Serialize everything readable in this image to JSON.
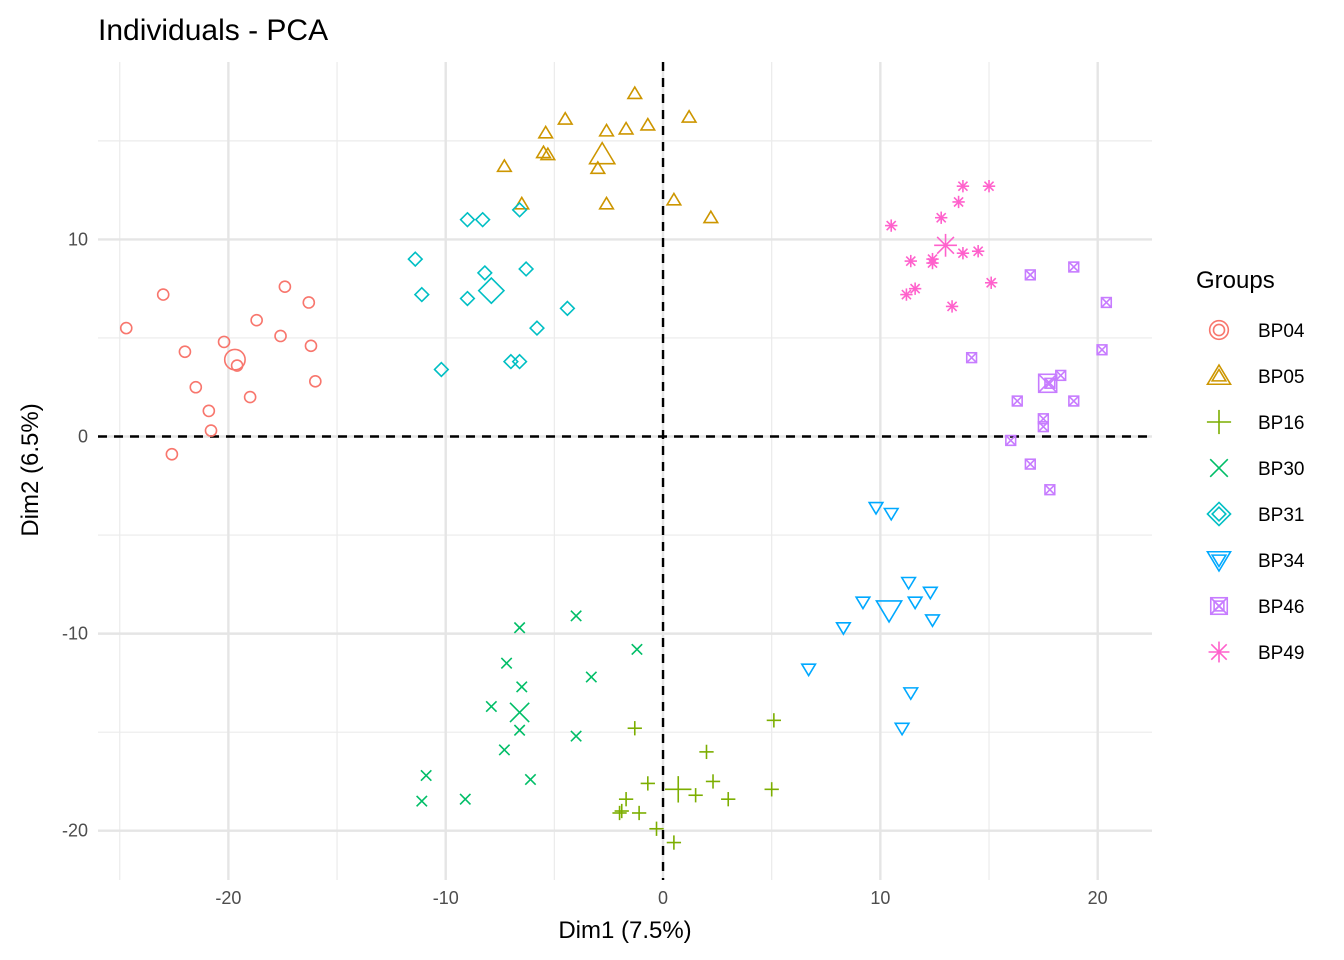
{
  "chart_data": {
    "type": "scatter",
    "title": "Individuals - PCA",
    "xlabel": "Dim1 (7.5%)",
    "ylabel": "Dim2 (6.5%)",
    "xlim": [
      -26,
      22.5
    ],
    "ylim": [
      -22.5,
      19
    ],
    "x_ticks": [
      -20,
      -10,
      0,
      10,
      20
    ],
    "y_ticks": [
      -20,
      -10,
      0,
      10
    ],
    "x_tick_labels": [
      "-20",
      "-10",
      "0",
      "10",
      "20"
    ],
    "y_tick_labels": [
      "-20",
      "-10",
      "0",
      "10"
    ],
    "grid": true,
    "reference_lines": {
      "x": 0,
      "y": 0,
      "style": "dashed"
    },
    "legend": {
      "title": "Groups",
      "position": "right"
    },
    "series": [
      {
        "name": "BP04",
        "color": "#F8766D",
        "shape": "circle",
        "centroid": [
          -19.7,
          3.9
        ],
        "points": [
          [
            -24.7,
            5.5
          ],
          [
            -23.0,
            7.2
          ],
          [
            -22.0,
            4.3
          ],
          [
            -20.2,
            4.8
          ],
          [
            -18.7,
            5.9
          ],
          [
            -17.6,
            5.1
          ],
          [
            -17.4,
            7.6
          ],
          [
            -16.3,
            6.8
          ],
          [
            -16.2,
            4.6
          ],
          [
            -16.0,
            2.8
          ],
          [
            -21.5,
            2.5
          ],
          [
            -19.6,
            3.6
          ],
          [
            -19.0,
            2.0
          ],
          [
            -20.9,
            1.3
          ],
          [
            -20.8,
            0.3
          ],
          [
            -22.6,
            -0.9
          ]
        ]
      },
      {
        "name": "BP05",
        "color": "#CD9600",
        "shape": "triangle",
        "centroid": [
          -2.8,
          14.3
        ],
        "points": [
          [
            -1.3,
            17.4
          ],
          [
            -4.5,
            16.1
          ],
          [
            -1.7,
            15.6
          ],
          [
            -0.7,
            15.8
          ],
          [
            1.2,
            16.2
          ],
          [
            -2.6,
            15.5
          ],
          [
            -5.4,
            15.4
          ],
          [
            -5.5,
            14.4
          ],
          [
            -5.3,
            14.3
          ],
          [
            -3.0,
            13.6
          ],
          [
            -7.3,
            13.7
          ],
          [
            -6.5,
            11.8
          ],
          [
            -2.6,
            11.8
          ],
          [
            0.5,
            12.0
          ],
          [
            2.2,
            11.1
          ]
        ]
      },
      {
        "name": "BP16",
        "color": "#7CAE00",
        "shape": "plus",
        "centroid": [
          0.7,
          -17.9
        ],
        "points": [
          [
            -1.3,
            -14.8
          ],
          [
            5.1,
            -14.4
          ],
          [
            2.0,
            -16.0
          ],
          [
            -0.7,
            -17.6
          ],
          [
            2.3,
            -17.5
          ],
          [
            1.5,
            -18.2
          ],
          [
            3.0,
            -18.4
          ],
          [
            5.0,
            -17.9
          ],
          [
            -1.7,
            -18.4
          ],
          [
            -1.9,
            -19.0
          ],
          [
            -2.0,
            -19.1
          ],
          [
            -1.1,
            -19.1
          ],
          [
            -0.3,
            -19.9
          ],
          [
            0.5,
            -20.6
          ]
        ]
      },
      {
        "name": "BP30",
        "color": "#00BE67",
        "shape": "cross",
        "centroid": [
          -6.6,
          -14.0
        ],
        "points": [
          [
            -4.0,
            -9.1
          ],
          [
            -6.6,
            -9.7
          ],
          [
            -1.2,
            -10.8
          ],
          [
            -7.2,
            -11.5
          ],
          [
            -3.3,
            -12.2
          ],
          [
            -6.5,
            -12.7
          ],
          [
            -7.9,
            -13.7
          ],
          [
            -6.6,
            -14.9
          ],
          [
            -4.0,
            -15.2
          ],
          [
            -7.3,
            -15.9
          ],
          [
            -10.9,
            -17.2
          ],
          [
            -6.1,
            -17.4
          ],
          [
            -11.1,
            -18.5
          ],
          [
            -9.1,
            -18.4
          ]
        ]
      },
      {
        "name": "BP31",
        "color": "#00BFC4",
        "shape": "diamond",
        "centroid": [
          -7.9,
          7.4
        ],
        "points": [
          [
            -9.0,
            11.0
          ],
          [
            -8.3,
            11.0
          ],
          [
            -6.6,
            11.5
          ],
          [
            -11.4,
            9.0
          ],
          [
            -8.2,
            8.3
          ],
          [
            -6.3,
            8.5
          ],
          [
            -11.1,
            7.2
          ],
          [
            -9.0,
            7.0
          ],
          [
            -4.4,
            6.5
          ],
          [
            -5.8,
            5.5
          ],
          [
            -7.0,
            3.8
          ],
          [
            -6.6,
            3.8
          ],
          [
            -10.2,
            3.4
          ]
        ]
      },
      {
        "name": "BP34",
        "color": "#00A9FF",
        "shape": "triangle-down",
        "centroid": [
          10.4,
          -8.8
        ],
        "points": [
          [
            9.8,
            -3.6
          ],
          [
            10.5,
            -3.9
          ],
          [
            11.3,
            -7.4
          ],
          [
            12.3,
            -7.9
          ],
          [
            9.2,
            -8.4
          ],
          [
            11.6,
            -8.4
          ],
          [
            12.4,
            -9.3
          ],
          [
            8.3,
            -9.7
          ],
          [
            6.7,
            -11.8
          ],
          [
            11.4,
            -13.0
          ],
          [
            11.0,
            -14.8
          ]
        ]
      },
      {
        "name": "BP46",
        "color": "#C77CFF",
        "shape": "square-cross",
        "centroid": [
          17.7,
          2.7
        ],
        "points": [
          [
            16.9,
            8.2
          ],
          [
            18.9,
            8.6
          ],
          [
            20.4,
            6.8
          ],
          [
            14.2,
            4.0
          ],
          [
            20.2,
            4.4
          ],
          [
            18.3,
            3.1
          ],
          [
            17.8,
            2.7
          ],
          [
            16.3,
            1.8
          ],
          [
            18.9,
            1.8
          ],
          [
            17.5,
            0.9
          ],
          [
            17.5,
            0.5
          ],
          [
            16.0,
            -0.2
          ],
          [
            16.9,
            -1.4
          ],
          [
            17.8,
            -2.7
          ]
        ]
      },
      {
        "name": "BP49",
        "color": "#FF61CC",
        "shape": "asterisk",
        "centroid": [
          13.0,
          9.7
        ],
        "points": [
          [
            13.8,
            12.7
          ],
          [
            15.0,
            12.7
          ],
          [
            13.6,
            11.9
          ],
          [
            12.8,
            11.1
          ],
          [
            10.5,
            10.7
          ],
          [
            11.4,
            8.9
          ],
          [
            12.4,
            9.0
          ],
          [
            12.4,
            8.8
          ],
          [
            13.8,
            9.3
          ],
          [
            14.5,
            9.4
          ],
          [
            11.2,
            7.2
          ],
          [
            11.6,
            7.5
          ],
          [
            15.1,
            7.8
          ],
          [
            13.3,
            6.6
          ]
        ]
      }
    ]
  }
}
